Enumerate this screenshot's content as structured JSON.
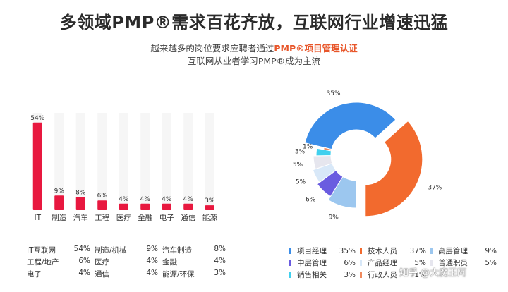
{
  "title": "多领域PMP®需求百花齐放，互联网行业增速迅猛",
  "subtitle": {
    "line1_prefix": "越来越多的岗位要求应聘者通过",
    "line1_highlight": "PMP®项目管理认证",
    "line2": "互联网从业者学习PMP®成为主流"
  },
  "chart_data": [
    {
      "type": "bar",
      "categories": [
        "IT",
        "制造",
        "汽车",
        "工程",
        "医疗",
        "金融",
        "电子",
        "通信",
        "能源"
      ],
      "values": [
        54,
        9,
        8,
        6,
        4,
        4,
        4,
        4,
        3
      ],
      "data_labels": [
        "54%",
        "9%",
        "8%",
        "6%",
        "4%",
        "4%",
        "4%",
        "4%",
        "3%"
      ],
      "ylim": [
        0,
        60
      ],
      "colors": {
        "bar": "#e8183f",
        "background_column": "#f6f6f6"
      }
    },
    {
      "type": "pie",
      "style": "donut",
      "labels": [
        "项目经理",
        "技术人员",
        "高层管理",
        "中层管理",
        "产品经理",
        "普通职员",
        "销售相关",
        "行政人员"
      ],
      "values": [
        35,
        37,
        9,
        6,
        5,
        5,
        3,
        1
      ],
      "data_labels": [
        "35%",
        "37%",
        "9%",
        "6%",
        "5%",
        "5%",
        "3%",
        "1%"
      ],
      "colors": [
        "#3b8de8",
        "#f26a2e",
        "#9cc7ef",
        "#6a5ce0",
        "#d8e8f8",
        "#e6e6ee",
        "#41d0ee",
        "#f08a5e"
      ],
      "legend_position": "bottom"
    }
  ],
  "bar_stats": [
    [
      {
        "name": "IT互联网",
        "value": "54%"
      },
      {
        "name": "制造/机械",
        "value": "9%"
      },
      {
        "name": "汽车制造",
        "value": "8%"
      }
    ],
    [
      {
        "name": "工程/地产",
        "value": "6%"
      },
      {
        "name": "医疗",
        "value": "4%"
      },
      {
        "name": "金融",
        "value": "4%"
      }
    ],
    [
      {
        "name": "电子",
        "value": "4%"
      },
      {
        "name": "通信",
        "value": "4%"
      },
      {
        "name": "能源/环保",
        "value": "3%"
      }
    ]
  ],
  "pie_legend": [
    [
      {
        "name": "项目经理",
        "value": "35%",
        "color": "#3b8de8"
      },
      {
        "name": "技术人员",
        "value": "37%",
        "color": "#f26a2e"
      },
      {
        "name": "高层管理",
        "value": "9%",
        "color": "#9cc7ef"
      }
    ],
    [
      {
        "name": "中层管理",
        "value": "6%",
        "color": "#6a5ce0"
      },
      {
        "name": "产品经理",
        "value": "5%",
        "color": "#d8e8f8"
      },
      {
        "name": "普通职员",
        "value": "5%",
        "color": "#e6e6ee"
      }
    ],
    [
      {
        "name": "销售相关",
        "value": "3%",
        "color": "#41d0ee"
      },
      {
        "name": "行政人员",
        "value": "1%",
        "color": "#f08a5e"
      }
    ]
  ],
  "watermark": "知乎 @大魔王阿"
}
